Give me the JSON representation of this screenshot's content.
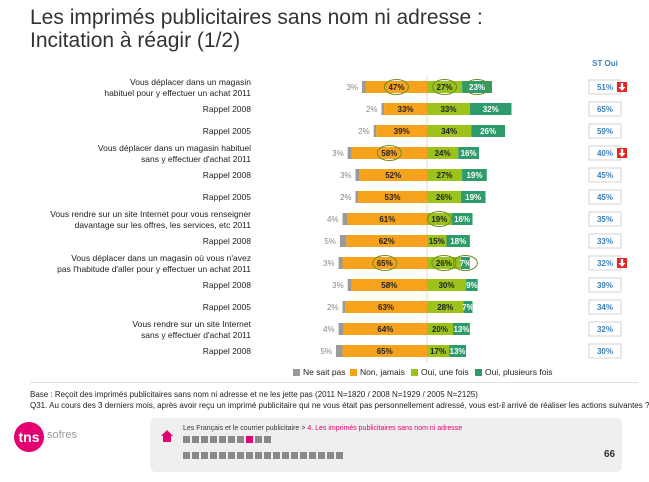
{
  "title_line1": "Les imprimés publicitaires sans nom ni adresse :",
  "title_line2": "Incitation à réagir (1/2)",
  "st_header": "ST Oui",
  "chart_data": {
    "type": "bar",
    "stacked": true,
    "orientation": "horizontal",
    "series": [
      {
        "name": "Ne sait pas",
        "color": "#9a9a9a"
      },
      {
        "name": "Non, jamais",
        "color": "#f7a21b"
      },
      {
        "name": "Oui, une fois",
        "color": "#9bc31c"
      },
      {
        "name": "Oui, plusieurs fois",
        "color": "#2e9b6b"
      }
    ],
    "rows": [
      {
        "label": [
          "Vous déplacer dans un magasin",
          "habituel pour y effectuer un achat 2011"
        ],
        "values": [
          3,
          47,
          27,
          23
        ],
        "st": "51%",
        "arrow": true,
        "circled": [
          1,
          2,
          3
        ]
      },
      {
        "label": [
          "Rappel 2008"
        ],
        "values": [
          2,
          33,
          33,
          32
        ],
        "st": "65%",
        "arrow": false,
        "circled": []
      },
      {
        "label": [
          "Rappel 2005"
        ],
        "values": [
          2,
          39,
          34,
          26
        ],
        "st": "59%",
        "arrow": false,
        "circled": []
      },
      {
        "label": [
          "Vous déplacer dans un magasin habituel",
          "sans y effectuer d'achat 2011"
        ],
        "values": [
          3,
          58,
          24,
          16
        ],
        "st": "40%",
        "arrow": true,
        "circled": [
          1
        ]
      },
      {
        "label": [
          "Rappel 2008"
        ],
        "values": [
          3,
          52,
          27,
          19
        ],
        "st": "45%",
        "arrow": false,
        "circled": []
      },
      {
        "label": [
          "Rappel 2005"
        ],
        "values": [
          2,
          53,
          26,
          19
        ],
        "st": "45%",
        "arrow": false,
        "circled": []
      },
      {
        "label": [
          "Vous rendre sur un site Internet pour vous renseigner",
          "davantage sur les offres, les services, etc 2011"
        ],
        "values": [
          4,
          61,
          19,
          16
        ],
        "st": "35%",
        "arrow": false,
        "circled": [
          2
        ]
      },
      {
        "label": [
          "Rappel 2008"
        ],
        "values": [
          5,
          62,
          15,
          18
        ],
        "st": "33%",
        "arrow": false,
        "circled": []
      },
      {
        "label": [
          "Vous déplacer dans un magasin où vous n'avez",
          "pas l'habitude d'aller pour y effectuer un achat 2011"
        ],
        "values": [
          3,
          65,
          26,
          7
        ],
        "st": "32%",
        "arrow": true,
        "circled": [
          1,
          2,
          3
        ]
      },
      {
        "label": [
          "Rappel 2008"
        ],
        "values": [
          3,
          58,
          30,
          9
        ],
        "st": "39%",
        "arrow": false,
        "circled": []
      },
      {
        "label": [
          "Rappel 2005"
        ],
        "values": [
          2,
          63,
          28,
          7
        ],
        "st": "34%",
        "arrow": false,
        "circled": []
      },
      {
        "label": [
          "Vous rendre sur un site Internet",
          "sans y effectuer d'achat 2011"
        ],
        "values": [
          4,
          64,
          20,
          13
        ],
        "st": "32%",
        "arrow": false,
        "circled": []
      },
      {
        "label": [
          "Rappel 2008"
        ],
        "values": [
          5,
          65,
          17,
          13
        ],
        "st": "30%",
        "arrow": false,
        "circled": []
      }
    ]
  },
  "base_line": "Base : Reçoit des imprimés publicitaires sans nom ni adresse et ne les jette pas (2011 N=1820 / 2008 N=1929 / 2005 N=2125)",
  "question_line": "Q31. Au cours des 3 derniers mois, après avoir reçu un imprimé publicitaire qui ne vous était pas personnellement adressé, vous est-il arrivé de réaliser les actions suivantes ?",
  "logo_text": "tns",
  "logo_sub": "sofres",
  "breadcrumb_parent": "Les Français et le courrier publicitaire >",
  "breadcrumb_current": " 4. Les imprimés publicitaires sans nom ni adresse",
  "nav_row1": {
    "count": 10,
    "active": 7
  },
  "nav_row2": {
    "count": 18,
    "active": -1
  },
  "page_number": "66",
  "colors": {
    "arrow": "#e8251c",
    "accent": "#e40070",
    "st_text": "#3c7fb7"
  }
}
